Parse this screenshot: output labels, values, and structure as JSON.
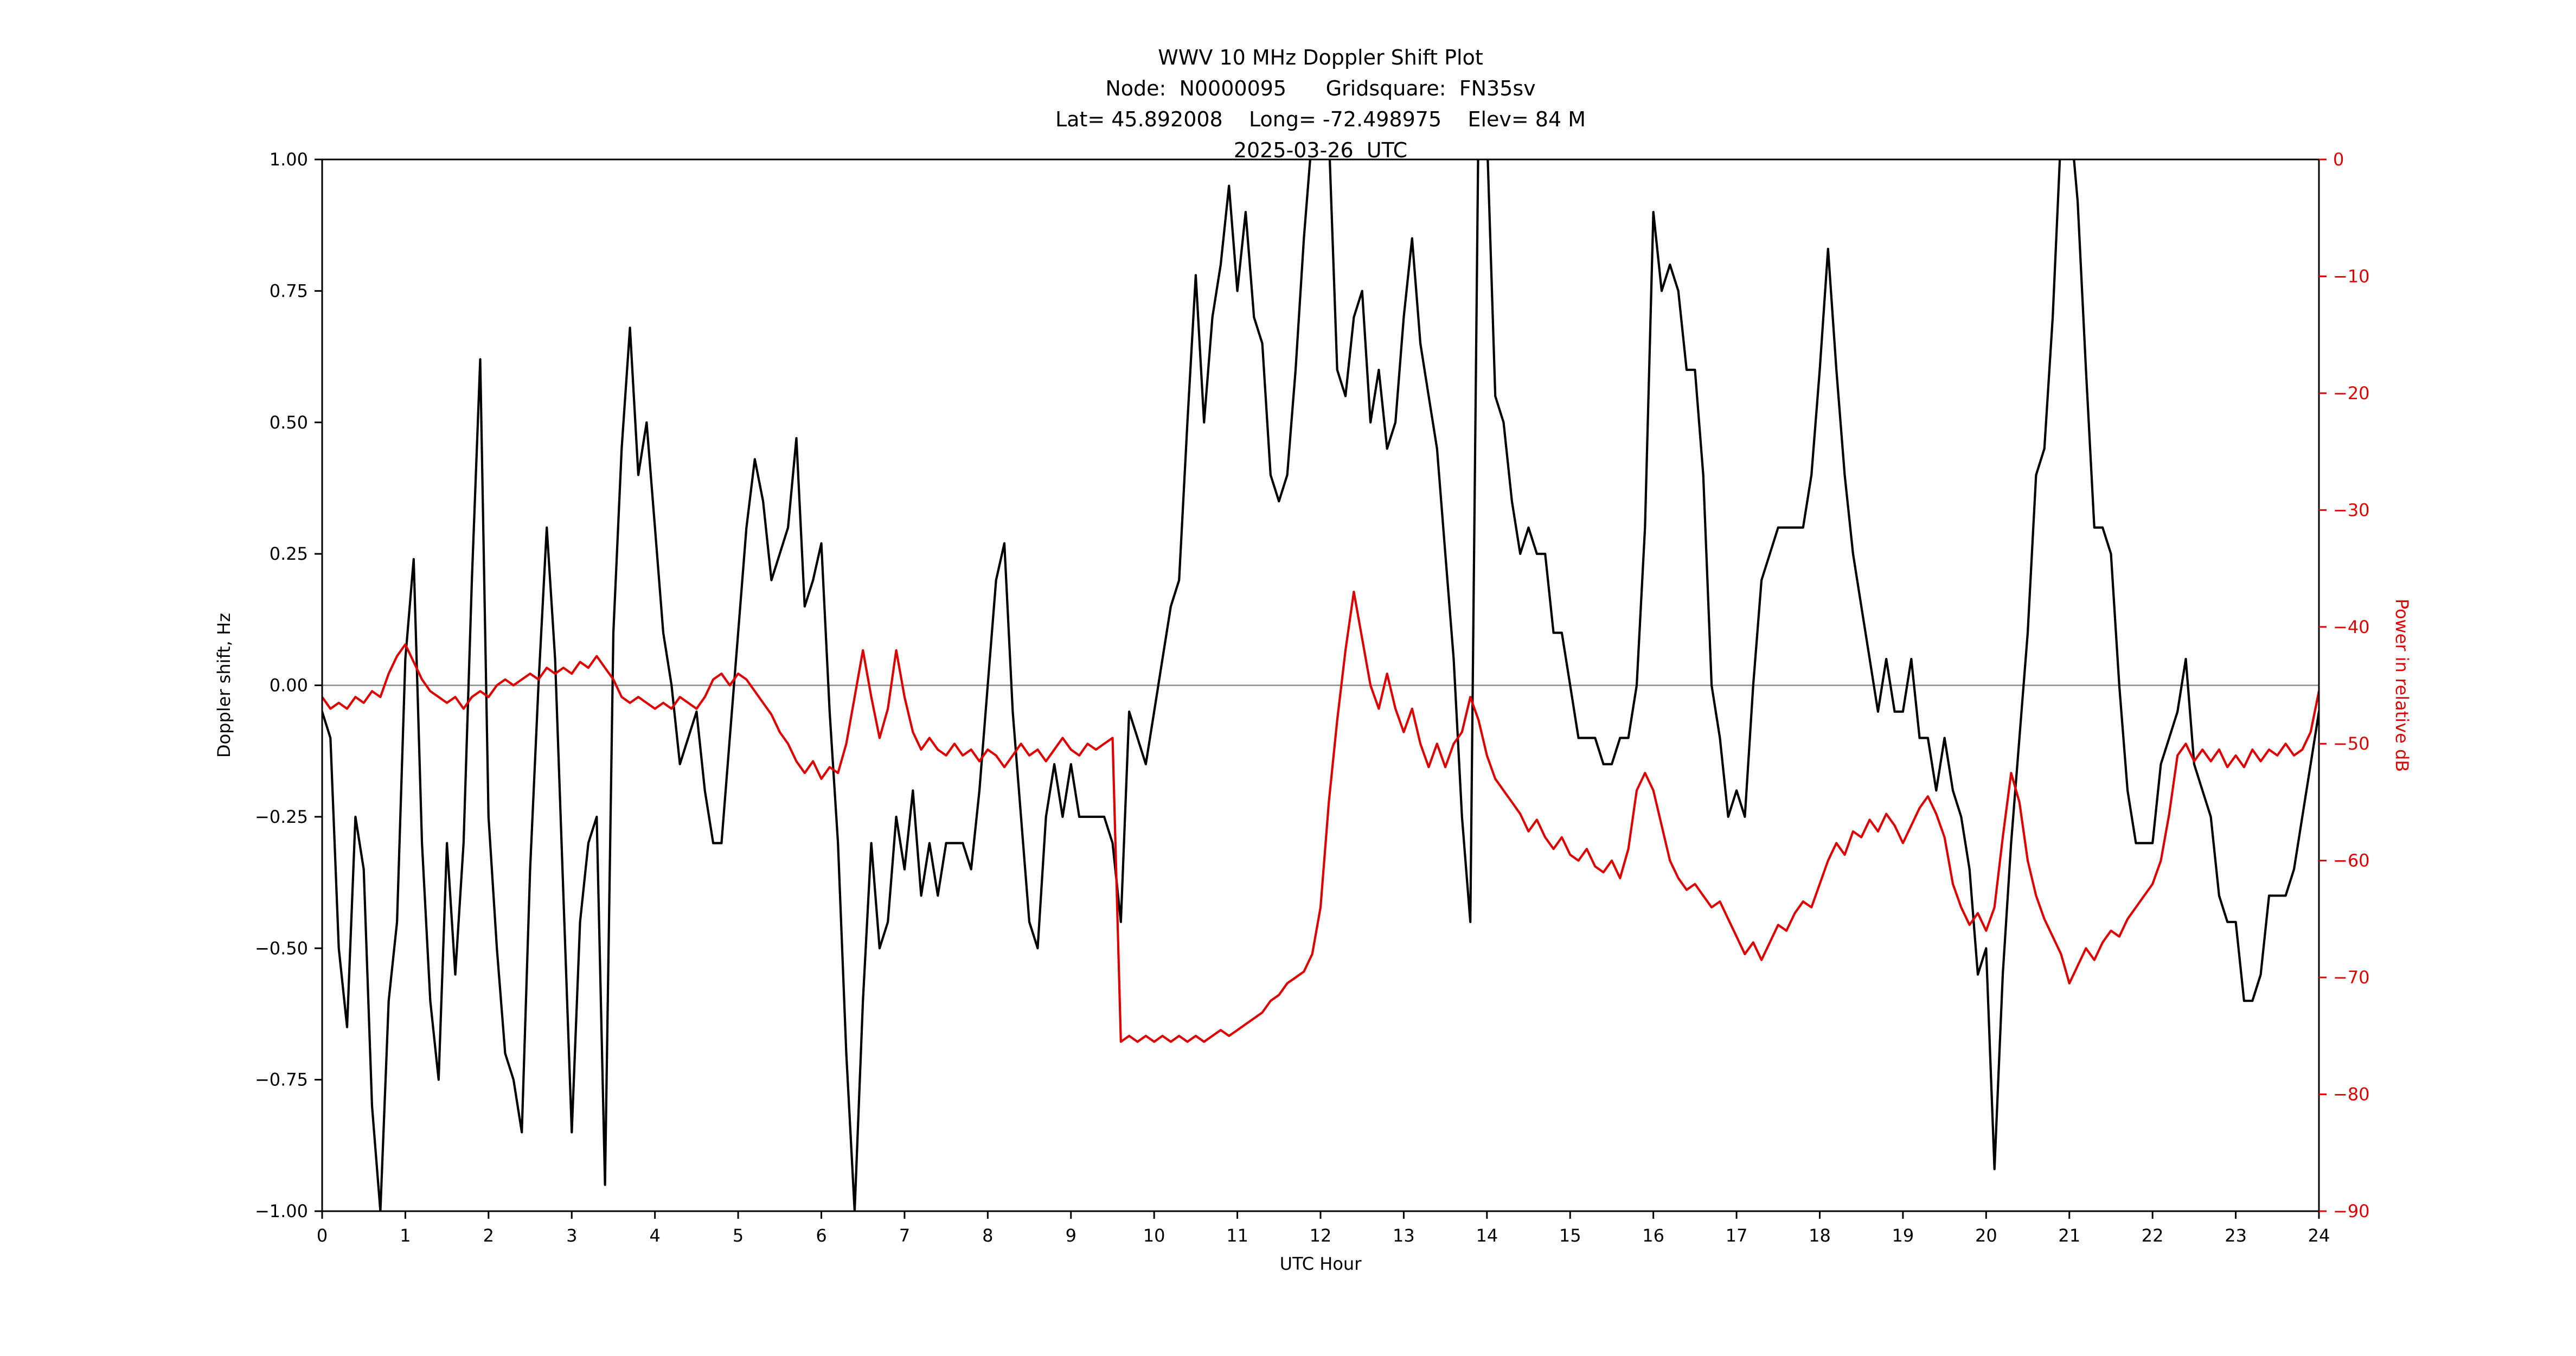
{
  "figure": {
    "title_lines": [
      "WWV 10 MHz Doppler Shift Plot",
      "Node:  N0000095      Gridsquare:  FN35sv",
      "Lat= 45.892008    Long= -72.498975    Elev= 84 M",
      "2025-03-26  UTC"
    ],
    "xlabel": "UTC Hour",
    "ylabel_left": "Doppler shift, Hz",
    "ylabel_right": "Power in relative dB",
    "colors": {
      "doppler": "#000000",
      "power": "#dd0000",
      "zero_line": "#8a8a8a",
      "spine": "#000000",
      "background": "#ffffff"
    }
  },
  "chart_data": {
    "type": "line",
    "title": "WWV 10 MHz Doppler Shift Plot",
    "subtitle": "Node: N0000095  Gridsquare: FN35sv  Lat= 45.892008  Long= -72.498975  Elev= 84 M  2025-03-26 UTC",
    "xlabel": "UTC Hour",
    "ylabel_left": "Doppler shift, Hz",
    "ylabel_right": "Power in relative dB",
    "grid": false,
    "legend": "none",
    "x_range": [
      0,
      24
    ],
    "y_left_range": [
      -1.0,
      1.0
    ],
    "y_right_range": [
      -90,
      0
    ],
    "x_start": 0,
    "x_step": 0.1,
    "x_ticks": {
      "values": [
        0,
        1,
        2,
        3,
        4,
        5,
        6,
        7,
        8,
        9,
        10,
        11,
        12,
        13,
        14,
        15,
        16,
        17,
        18,
        19,
        20,
        21,
        22,
        23,
        24
      ],
      "labels": [
        "0",
        "1",
        "2",
        "3",
        "4",
        "5",
        "6",
        "7",
        "8",
        "9",
        "10",
        "11",
        "12",
        "13",
        "14",
        "15",
        "16",
        "17",
        "18",
        "19",
        "20",
        "21",
        "22",
        "23",
        "24"
      ]
    },
    "y_left_ticks": {
      "values": [
        1.0,
        0.75,
        0.5,
        0.25,
        0.0,
        -0.25,
        -0.5,
        -0.75,
        -1.0
      ],
      "labels": [
        "1.00",
        "0.75",
        "0.50",
        "0.25",
        "0.00",
        "−0.25",
        "−0.50",
        "−0.75",
        "−1.00"
      ]
    },
    "y_right_ticks": {
      "values": [
        0,
        -10,
        -20,
        -30,
        -40,
        -50,
        -60,
        -70,
        -80,
        -90
      ],
      "labels": [
        "0",
        "−10",
        "−20",
        "−30",
        "−40",
        "−50",
        "−60",
        "−70",
        "−80",
        "−90"
      ]
    },
    "zero_reference_line": 0.0,
    "series": [
      {
        "name": "doppler_shift_hz",
        "axis": "left",
        "color": "#000000",
        "values": [
          -0.05,
          -0.1,
          -0.5,
          -0.65,
          -0.25,
          -0.35,
          -0.8,
          -1.0,
          -0.6,
          -0.45,
          0.05,
          0.24,
          -0.3,
          -0.6,
          -0.75,
          -0.3,
          -0.55,
          -0.3,
          0.2,
          0.62,
          -0.25,
          -0.5,
          -0.7,
          -0.75,
          -0.85,
          -0.35,
          0.0,
          0.3,
          0.05,
          -0.4,
          -0.85,
          -0.45,
          -0.3,
          -0.25,
          -0.95,
          0.1,
          0.45,
          0.68,
          0.4,
          0.5,
          0.3,
          0.1,
          0.0,
          -0.15,
          -0.1,
          -0.05,
          -0.2,
          -0.3,
          -0.3,
          -0.1,
          0.1,
          0.3,
          0.43,
          0.35,
          0.2,
          0.25,
          0.3,
          0.47,
          0.15,
          0.2,
          0.27,
          -0.05,
          -0.3,
          -0.7,
          -1.0,
          -0.6,
          -0.3,
          -0.5,
          -0.45,
          -0.25,
          -0.35,
          -0.2,
          -0.4,
          -0.3,
          -0.4,
          -0.3,
          -0.3,
          -0.3,
          -0.35,
          -0.2,
          0.0,
          0.2,
          0.27,
          -0.05,
          -0.25,
          -0.45,
          -0.5,
          -0.25,
          -0.15,
          -0.25,
          -0.15,
          -0.25,
          -0.25,
          -0.25,
          -0.25,
          -0.3,
          -0.45,
          -0.05,
          -0.1,
          -0.15,
          -0.05,
          0.05,
          0.15,
          0.2,
          0.5,
          0.78,
          0.5,
          0.7,
          0.8,
          0.95,
          0.75,
          0.9,
          0.7,
          0.65,
          0.4,
          0.35,
          0.4,
          0.6,
          0.85,
          1.05,
          1.05,
          1.05,
          0.6,
          0.55,
          0.7,
          0.75,
          0.5,
          0.6,
          0.45,
          0.5,
          0.7,
          0.85,
          0.65,
          0.55,
          0.45,
          0.25,
          0.05,
          -0.25,
          -0.45,
          1.1,
          1.05,
          0.55,
          0.5,
          0.35,
          0.25,
          0.3,
          0.25,
          0.25,
          0.1,
          0.1,
          0.0,
          -0.1,
          -0.1,
          -0.1,
          -0.15,
          -0.15,
          -0.1,
          -0.1,
          0.0,
          0.3,
          0.9,
          0.75,
          0.8,
          0.75,
          0.6,
          0.6,
          0.4,
          0.0,
          -0.1,
          -0.25,
          -0.2,
          -0.25,
          0.0,
          0.2,
          0.25,
          0.3,
          0.3,
          0.3,
          0.3,
          0.4,
          0.6,
          0.83,
          0.6,
          0.4,
          0.25,
          0.15,
          0.05,
          -0.05,
          0.05,
          -0.05,
          -0.05,
          0.05,
          -0.1,
          -0.1,
          -0.2,
          -0.1,
          -0.2,
          -0.25,
          -0.35,
          -0.55,
          -0.5,
          -0.92,
          -0.55,
          -0.3,
          -0.1,
          0.1,
          0.4,
          0.45,
          0.7,
          1.05,
          1.1,
          0.92,
          0.6,
          0.3,
          0.3,
          0.25,
          0.0,
          -0.2,
          -0.3,
          -0.3,
          -0.3,
          -0.15,
          -0.1,
          -0.05,
          0.05,
          -0.15,
          -0.2,
          -0.25,
          -0.4,
          -0.45,
          -0.45,
          -0.6,
          -0.6,
          -0.55,
          -0.4,
          -0.4,
          -0.4,
          -0.35,
          -0.25,
          -0.15,
          -0.05
        ]
      },
      {
        "name": "power_relative_db",
        "axis": "right",
        "color": "#dd0000",
        "values": [
          -46,
          -47,
          -46.5,
          -47,
          -46,
          -46.5,
          -45.5,
          -46,
          -44,
          -42.5,
          -41.5,
          -43,
          -44.5,
          -45.5,
          -46,
          -46.5,
          -46,
          -47,
          -46,
          -45.5,
          -46,
          -45,
          -44.5,
          -45,
          -44.5,
          -44,
          -44.5,
          -43.5,
          -44,
          -43.5,
          -44,
          -43,
          -43.5,
          -42.5,
          -43.5,
          -44.5,
          -46,
          -46.5,
          -46,
          -46.5,
          -47,
          -46.5,
          -47,
          -46,
          -46.5,
          -47,
          -46,
          -44.5,
          -44,
          -45,
          -44,
          -44.5,
          -45.5,
          -46.5,
          -47.5,
          -49,
          -50,
          -51.5,
          -52.5,
          -51.5,
          -53,
          -52,
          -52.5,
          -50,
          -46,
          -42,
          -46,
          -49.5,
          -47,
          -42,
          -46,
          -49,
          -50.5,
          -49.5,
          -50.5,
          -51,
          -50,
          -51,
          -50.5,
          -51.5,
          -50.5,
          -51,
          -52,
          -51,
          -50,
          -51,
          -50.5,
          -51.5,
          -50.5,
          -49.5,
          -50.5,
          -51,
          -50,
          -50.5,
          -50,
          -49.5,
          -75.5,
          -75,
          -75.5,
          -75,
          -75.5,
          -75,
          -75.5,
          -75,
          -75.5,
          -75,
          -75.5,
          -75,
          -74.5,
          -75,
          -74.5,
          -74,
          -73.5,
          -73,
          -72,
          -71.5,
          -70.5,
          -70,
          -69.5,
          -68,
          -64,
          -55,
          -48,
          -42,
          -37,
          -41,
          -45,
          -47,
          -44,
          -47,
          -49,
          -47,
          -50,
          -52,
          -50,
          -52,
          -50,
          -49,
          -46,
          -48,
          -51,
          -53,
          -54,
          -55,
          -56,
          -57.5,
          -56.5,
          -58,
          -59,
          -58,
          -59.5,
          -60,
          -59,
          -60.5,
          -61,
          -60,
          -61.5,
          -59,
          -54,
          -52.5,
          -54,
          -57,
          -60,
          -61.5,
          -62.5,
          -62,
          -63,
          -64,
          -63.5,
          -65,
          -66.5,
          -68,
          -67,
          -68.5,
          -67,
          -65.5,
          -66,
          -64.5,
          -63.5,
          -64,
          -62,
          -60,
          -58.5,
          -59.5,
          -57.5,
          -58,
          -56.5,
          -57.5,
          -56,
          -57,
          -58.5,
          -57,
          -55.5,
          -54.5,
          -56,
          -58,
          -62,
          -64,
          -65.5,
          -64.5,
          -66,
          -64,
          -58,
          -52.5,
          -55,
          -60,
          -63,
          -65,
          -66.5,
          -68,
          -70.5,
          -69,
          -67.5,
          -68.5,
          -67,
          -66,
          -66.5,
          -65,
          -64,
          -63,
          -62,
          -60,
          -56,
          -51,
          -50,
          -51.5,
          -50.5,
          -51.5,
          -50.5,
          -52,
          -51,
          -52,
          -50.5,
          -51.5,
          -50.5,
          -51,
          -50,
          -51,
          -50.5,
          -49,
          -45.5
        ]
      }
    ]
  }
}
